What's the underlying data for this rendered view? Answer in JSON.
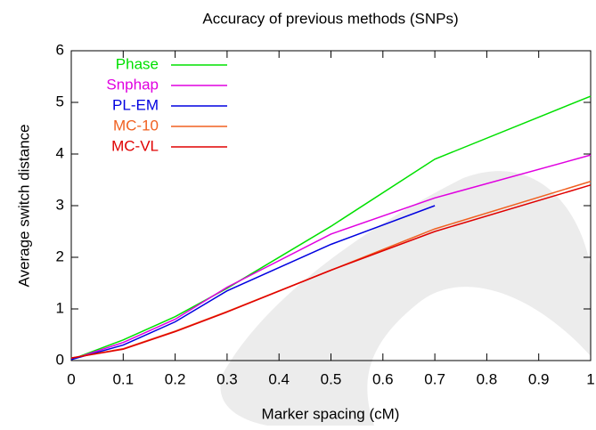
{
  "chart_data": {
    "type": "line",
    "title": "Accuracy of previous methods (SNPs)",
    "x_label": "Marker spacing (cM)",
    "y_label": "Average switch distance",
    "x": [
      0,
      0.1,
      0.2,
      0.3,
      0.5,
      0.7,
      1
    ],
    "series": [
      {
        "name": "Phase",
        "color": "#00e000",
        "values": [
          0.02,
          0.4,
          0.85,
          1.4,
          2.6,
          3.9,
          5.12
        ]
      },
      {
        "name": "Snphap",
        "color": "#e000e0",
        "values": [
          0.02,
          0.35,
          0.8,
          1.42,
          2.45,
          3.15,
          3.98
        ]
      },
      {
        "name": "PL-EM",
        "color": "#0000e0",
        "values": [
          0.02,
          0.3,
          0.75,
          1.35,
          2.25,
          3.0,
          null
        ]
      },
      {
        "name": "MC-10",
        "color": "#f06020",
        "values": [
          0.05,
          0.23,
          0.57,
          0.95,
          1.75,
          2.55,
          3.47
        ]
      },
      {
        "name": "MC-VL",
        "color": "#e00000",
        "values": [
          0.05,
          0.22,
          0.56,
          0.94,
          1.75,
          2.5,
          3.4
        ]
      }
    ],
    "xlim": [
      0,
      1
    ],
    "xticks": [
      0,
      0.1,
      0.2,
      0.3,
      0.4,
      0.5,
      0.6,
      0.7,
      0.8,
      0.9,
      1
    ],
    "ylim": [
      0,
      6
    ],
    "yticks": [
      0,
      1,
      2,
      3,
      4,
      5,
      6
    ],
    "legend": "top-left"
  }
}
